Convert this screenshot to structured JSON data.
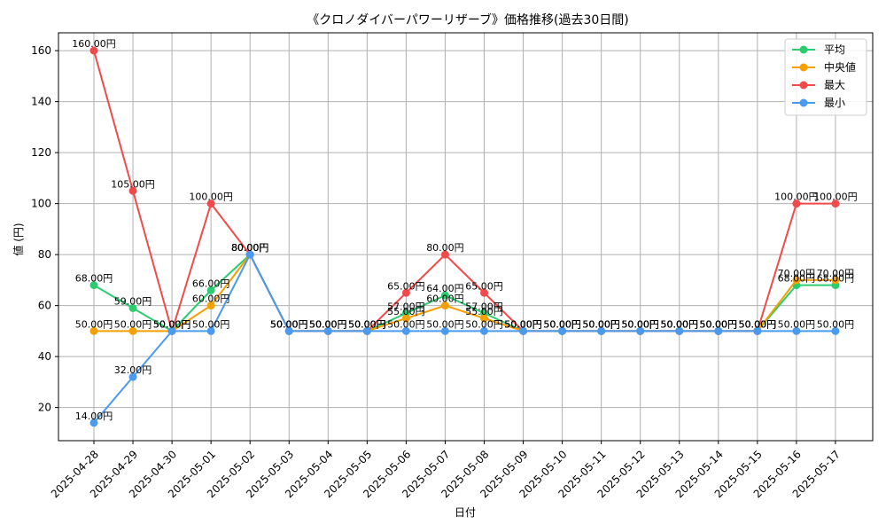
{
  "chart_data": {
    "type": "line",
    "title": "《クロノダイバーパワーリザーブ》価格推移(過去30日間)",
    "xlabel": "日付",
    "ylabel": "値 (円)",
    "categories": [
      "2025-04-28",
      "2025-04-29",
      "2025-04-30",
      "2025-05-01",
      "2025-05-02",
      "2025-05-03",
      "2025-05-04",
      "2025-05-05",
      "2025-05-06",
      "2025-05-07",
      "2025-05-08",
      "2025-05-09",
      "2025-05-10",
      "2025-05-11",
      "2025-05-12",
      "2025-05-13",
      "2025-05-14",
      "2025-05-15",
      "2025-05-16",
      "2025-05-17"
    ],
    "ylim": [
      7,
      167
    ],
    "yticks": [
      20,
      40,
      60,
      80,
      100,
      120,
      140,
      160
    ],
    "grid": true,
    "legend_position": "top-right",
    "label_suffix": "円",
    "series": [
      {
        "name": "平均",
        "color": "#2ecc71",
        "values": [
          68,
          59,
          50,
          66,
          80,
          50,
          50,
          50,
          57,
          64,
          57,
          50,
          50,
          50,
          50,
          50,
          50,
          50,
          68,
          68
        ]
      },
      {
        "name": "中央値",
        "color": "#f5a000",
        "values": [
          50,
          50,
          50,
          60,
          80,
          50,
          50,
          50,
          55,
          60,
          55,
          50,
          50,
          50,
          50,
          50,
          50,
          50,
          70,
          70
        ]
      },
      {
        "name": "最大",
        "color": "#f04a4a",
        "values": [
          160,
          105,
          50,
          100,
          80,
          50,
          50,
          50,
          65,
          80,
          65,
          50,
          50,
          50,
          50,
          50,
          50,
          50,
          100,
          100
        ]
      },
      {
        "name": "最小",
        "color": "#4a9af0",
        "values": [
          14,
          32,
          50,
          50,
          80,
          50,
          50,
          50,
          50,
          50,
          50,
          50,
          50,
          50,
          50,
          50,
          50,
          50,
          50,
          50
        ]
      }
    ]
  }
}
